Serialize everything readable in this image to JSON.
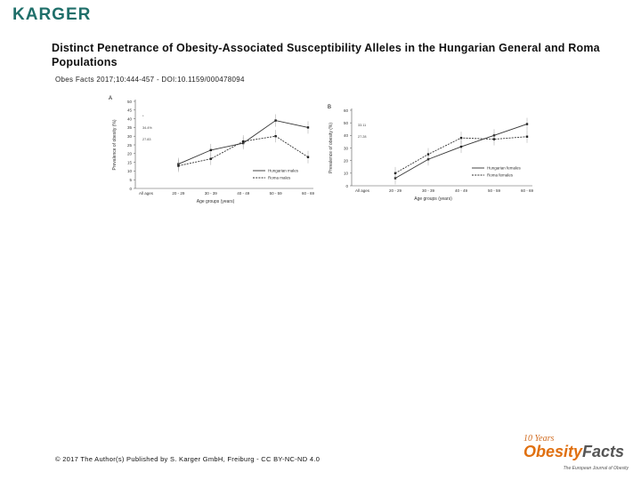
{
  "header": {
    "publisher": "KARGER",
    "title": "Distinct Penetrance of Obesity-Associated Susceptibility Alleles in the Hungarian General and Roma Populations",
    "citation": "Obes Facts 2017;10:444-457 - DOI:10.1159/000478094"
  },
  "footer": {
    "copyright": "© 2017 The Author(s) Published by S. Karger GmbH, Freiburg - CC BY-NC-ND 4.0",
    "journal_ten": "10 Years",
    "journal_name_a": "Obesity",
    "journal_name_b": "Facts",
    "journal_tagline": "The European Journal of Obesity"
  },
  "chart_data": [
    {
      "type": "line",
      "panel": "A",
      "xlabel": "Age groups (years)",
      "ylabel": "Prevalence of obesity (%)",
      "yticks": [
        "0",
        "5",
        "10",
        "15",
        "20",
        "25",
        "30",
        "35",
        "40",
        "45",
        "50"
      ],
      "ylim": [
        0,
        50
      ],
      "categories": [
        "All ages",
        "20 - 29",
        "30 - 39",
        "40 - 49",
        "50 - 59",
        "60 - 69"
      ],
      "series": [
        {
          "name": "Hungarian males",
          "style": "solid",
          "values": [
            null,
            14,
            22,
            26,
            39,
            35
          ]
        },
        {
          "name": "Roma males",
          "style": "dashed",
          "values": [
            null,
            13,
            17,
            27,
            30,
            18
          ]
        }
      ],
      "annotations": [
        "*",
        "34.4%",
        "27.83"
      ],
      "legend": "bottom-right"
    },
    {
      "type": "line",
      "panel": "B",
      "xlabel": "Age groups (years)",
      "ylabel": "Prevalence of obesity (%)",
      "yticks": [
        "0",
        "10",
        "20",
        "30",
        "40",
        "50",
        "60"
      ],
      "ylim": [
        0,
        60
      ],
      "categories": [
        "All ages",
        "20 - 29",
        "30 - 39",
        "40 - 49",
        "50 - 59",
        "60 - 69"
      ],
      "series": [
        {
          "name": "Hungarian females",
          "style": "solid",
          "values": [
            null,
            6,
            21,
            31,
            40,
            49
          ]
        },
        {
          "name": "Roma females",
          "style": "dashed",
          "values": [
            null,
            10,
            25,
            38,
            37,
            39
          ]
        }
      ],
      "annotations": [
        "33.11",
        "27.28"
      ],
      "legend": "bottom-right"
    }
  ]
}
